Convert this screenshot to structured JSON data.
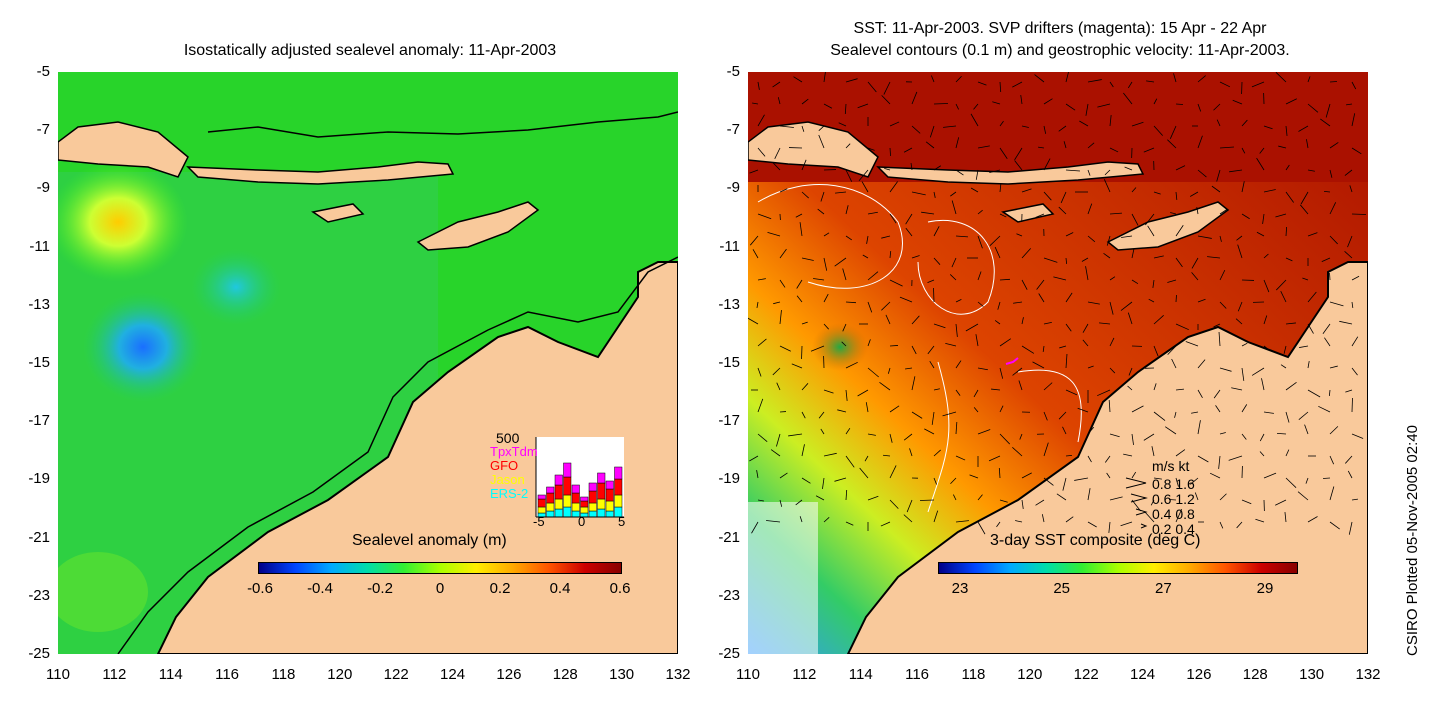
{
  "left_panel": {
    "title": "Isostatically adjusted sealevel anomaly: 11-Apr-2003",
    "colorbar": {
      "title": "Sealevel anomaly (m)",
      "ticks": [
        "-0.6",
        "-0.4",
        "-0.2",
        "0",
        "0.2",
        "0.4",
        "0.6"
      ]
    },
    "mission_histogram": {
      "max_label": "500",
      "missions": [
        {
          "name": "TpxTdm",
          "color": "#ff00ff"
        },
        {
          "name": "GFO",
          "color": "#ff0000"
        },
        {
          "name": "Jason",
          "color": "#ffff00"
        },
        {
          "name": "ERS-2",
          "color": "#00ffff"
        }
      ],
      "x_ticks": [
        "-5",
        "0",
        "5"
      ]
    }
  },
  "right_panel": {
    "title_line1": "SST: 11-Apr-2003. SVP drifters (magenta): 15 Apr - 22 Apr",
    "title_line2": "Sealevel contours (0.1 m) and geostrophic velocity: 11-Apr-2003.",
    "colorbar": {
      "title": "3-day SST composite (deg C)",
      "ticks": [
        "23",
        "25",
        "27",
        "29"
      ]
    },
    "velocity_legend": {
      "header": "m/s  kt",
      "rows": [
        "0.8  1.6",
        "0.6  1.2",
        "0.4  0.8",
        "0.2  0.4"
      ]
    }
  },
  "axes": {
    "y_ticks": [
      "-5",
      "-7",
      "-9",
      "-11",
      "-13",
      "-15",
      "-17",
      "-19",
      "-21",
      "-23",
      "-25"
    ],
    "x_ticks": [
      "110",
      "112",
      "114",
      "116",
      "118",
      "120",
      "122",
      "124",
      "126",
      "128",
      "130",
      "132"
    ]
  },
  "credit": "CSIRO Plotted 05-Nov-2005 02:40",
  "colors": {
    "land": "#f9c99b",
    "ocean_sla": "#22dd22",
    "ocean_sst": "#cc3300"
  }
}
